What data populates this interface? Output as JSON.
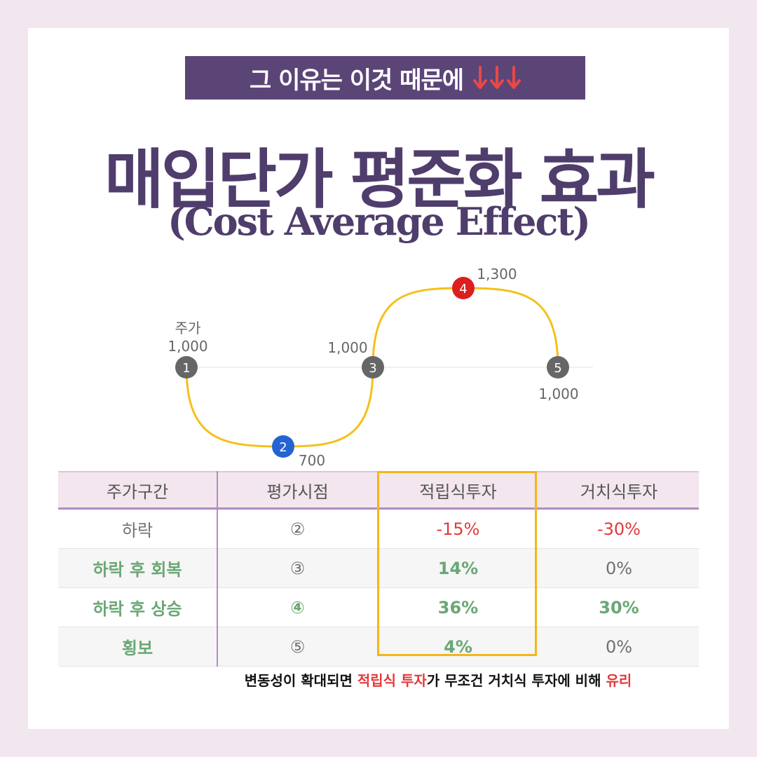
{
  "banner": {
    "text": "그 이유는 이것 때문에"
  },
  "title": {
    "korean": "매입단가 평준화 효과",
    "english": "(Cost Average Effect)"
  },
  "chart_data": {
    "type": "line",
    "series_label": "주가",
    "points": [
      {
        "id": "1",
        "label": "1,000",
        "value": 1000
      },
      {
        "id": "2",
        "label": "700",
        "value": 700
      },
      {
        "id": "3",
        "label": "1,000",
        "value": 1000
      },
      {
        "id": "4",
        "label": "1,300",
        "value": 1300
      },
      {
        "id": "5",
        "label": "1,000",
        "value": 1000
      }
    ],
    "colors": {
      "curve": "#f5c01a",
      "baseline": "#ececec",
      "default": "#666666",
      "low": "#2463d2",
      "high": "#de1e1e"
    }
  },
  "table": {
    "headers": [
      "주가구간",
      "평가시점",
      "적립식투자",
      "거치식투자"
    ],
    "rows": [
      {
        "phase": "하락",
        "point": "②",
        "dca": "-15%",
        "lump": "-30%"
      },
      {
        "phase": "하락 후 회복",
        "point": "③",
        "dca": "14%",
        "lump": "0%"
      },
      {
        "phase": "하락 후 상승",
        "point": "④",
        "dca": "36%",
        "lump": "30%"
      },
      {
        "phase": "횡보",
        "point": "⑤",
        "dca": "4%",
        "lump": "0%"
      }
    ]
  },
  "footnote": {
    "part1": "변동성이 확대되면 ",
    "part2": "적립식 투자",
    "part3": "가 무조건 거치식 투자에 비해 ",
    "part4": "유리"
  },
  "colors": {
    "purple": "#5b4577",
    "title": "#4f3d6c",
    "red": "#e23a3a",
    "green": "#6aa775",
    "highlight_border": "#f5b51b",
    "bg": "#f2e7ef"
  }
}
